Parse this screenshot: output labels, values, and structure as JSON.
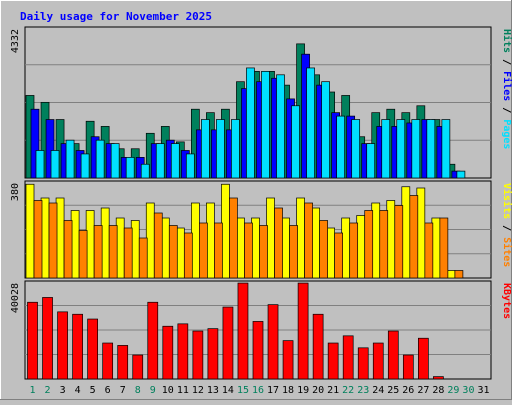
{
  "chart_data": {
    "type": "bar",
    "title": "Daily usage for November 2025",
    "days": [
      "1",
      "2",
      "3",
      "4",
      "5",
      "6",
      "7",
      "8",
      "9",
      "10",
      "11",
      "12",
      "13",
      "14",
      "15",
      "16",
      "17",
      "18",
      "19",
      "20",
      "21",
      "22",
      "23",
      "24",
      "25",
      "26",
      "27",
      "28",
      "29",
      "30",
      "31"
    ],
    "weekend_days": [
      "1",
      "2",
      "8",
      "9",
      "15",
      "16",
      "22",
      "23",
      "29",
      "30"
    ],
    "panels": [
      {
        "id": "hits-files-pages",
        "ymax": 4332,
        "ymax_label": "4332",
        "ylabel_parts": [
          "Pages",
          " / ",
          "Files",
          " / ",
          "Hits"
        ],
        "series": [
          {
            "name": "Hits",
            "color": "#00805c",
            "values": [
              2400,
              2200,
              1700,
              1000,
              1650,
              1500,
              850,
              850,
              1300,
              1500,
              1050,
              2000,
              1900,
              2000,
              2800,
              3100,
              3100,
              2700,
              3900,
              3000,
              2500,
              2400,
              1200,
              1900,
              2000,
              1900,
              2100,
              1700,
              400,
              0,
              0
            ]
          },
          {
            "name": "Files",
            "color": "#0000ff",
            "values": [
              2000,
              1700,
              1000,
              800,
              1200,
              1000,
              600,
              600,
              1000,
              1100,
              800,
              1400,
              1400,
              1400,
              2600,
              2800,
              2900,
              2300,
              3600,
              2700,
              1900,
              1800,
              1000,
              1500,
              1500,
              1600,
              1700,
              1500,
              200,
              0,
              0
            ]
          },
          {
            "name": "Pages",
            "color": "#00e0ff",
            "values": [
              800,
              800,
              1100,
              700,
              1100,
              1000,
              600,
              400,
              1000,
              1000,
              700,
              1700,
              1700,
              1700,
              3200,
              3100,
              3000,
              2100,
              3200,
              2800,
              1800,
              1700,
              1000,
              1700,
              1700,
              1700,
              1700,
              1700,
              200,
              0,
              0
            ]
          }
        ]
      },
      {
        "id": "visits-sites",
        "ymax": 380,
        "ymax_label": "380",
        "ylabel_parts": [
          "Sites",
          " / ",
          "Visits"
        ],
        "series": [
          {
            "name": "Visits",
            "color": "#ffff00",
            "values": [
              375,
              320,
              320,
              270,
              270,
              280,
              240,
              230,
              300,
              240,
              200,
              300,
              300,
              375,
              240,
              240,
              320,
              240,
              320,
              280,
              200,
              240,
              250,
              300,
              310,
              365,
              360,
              240,
              30,
              0,
              0
            ]
          },
          {
            "name": "Sites",
            "color": "#ff8000",
            "values": [
              310,
              300,
              230,
              190,
              210,
              210,
              200,
              160,
              260,
              210,
              180,
              220,
              220,
              320,
              220,
              210,
              280,
              210,
              300,
              230,
              180,
              220,
              270,
              270,
              290,
              330,
              220,
              240,
              30,
              0,
              0
            ]
          }
        ]
      },
      {
        "id": "kbytes",
        "ymax": 40028,
        "ymax_label": "40028",
        "ylabel_parts": [
          "KBytes"
        ],
        "series": [
          {
            "name": "KBytes",
            "color": "#ff0000",
            "values": [
              32000,
              34000,
              28000,
              27000,
              25000,
              15000,
              14000,
              10000,
              32000,
              22000,
              23000,
              20000,
              21000,
              30000,
              40000,
              24000,
              31000,
              16000,
              40000,
              27000,
              15000,
              18000,
              13000,
              15000,
              20000,
              10000,
              17000,
              1000,
              0,
              0,
              0
            ]
          }
        ]
      }
    ]
  }
}
